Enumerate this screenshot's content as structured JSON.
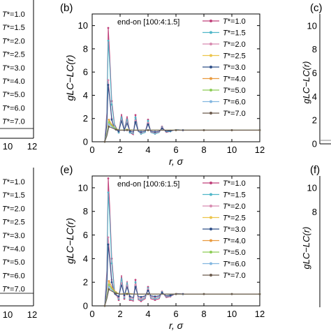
{
  "colors": {
    "T1.0": "#c0407a",
    "T1.5": "#4fb6c8",
    "T2.0": "#d88ab0",
    "T2.5": "#ecc44a",
    "T3.0": "#2f4f88",
    "T4.0": "#e99a3e",
    "T5.0": "#8ccc55",
    "T6.0": "#82b6e0",
    "T7.0": "#6b5a4c"
  },
  "legend_items": [
    {
      "prefix": "T",
      "suffix": "*=1.0"
    },
    {
      "prefix": "T",
      "suffix": "*=1.5"
    },
    {
      "prefix": "T",
      "suffix": "*=2.0"
    },
    {
      "prefix": "T",
      "suffix": "*=2.5"
    },
    {
      "prefix": "T",
      "suffix": "*=3.0"
    },
    {
      "prefix": "T",
      "suffix": "*=4.0"
    },
    {
      "prefix": "T",
      "suffix": "*=5.0"
    },
    {
      "prefix": "T",
      "suffix": "*=6.0"
    },
    {
      "prefix": "T",
      "suffix": "*=7.0"
    }
  ],
  "panel_labels": {
    "b": "(b)",
    "c": "(c)",
    "e": "(e)",
    "f": "(f)"
  },
  "left_xticks": [
    "10",
    "12"
  ],
  "right_yticks": {
    "top": [
      "10",
      "8",
      "6",
      "4",
      "2",
      "0"
    ],
    "bottom": [
      "10",
      "8"
    ]
  },
  "chart_data": [
    {
      "id": "b",
      "type": "line",
      "title": "end-on [100:4:1.5]",
      "xlabel": "r, σ",
      "ylabel": "gLC−LC(r)",
      "xlim": [
        0,
        12
      ],
      "ylim": [
        0,
        11
      ],
      "xticks": [
        "0",
        "2",
        "4",
        "6",
        "8",
        "10",
        "12"
      ],
      "yticks": [
        "0",
        "2",
        "4",
        "6",
        "8",
        "10"
      ],
      "legend_position": "top-right",
      "series": [
        {
          "name": "T*=1.0",
          "x": [
            0.9,
            1.05,
            1.15,
            1.25,
            1.4,
            1.6,
            1.9,
            2.1,
            2.3,
            2.5,
            2.7,
            2.95,
            3.1,
            3.3,
            3.5,
            3.8,
            4.0,
            4.2,
            4.5,
            4.8,
            5.0,
            5.3,
            5.6,
            6.0,
            6.5,
            7,
            8,
            9,
            10,
            11,
            12
          ],
          "y": [
            0,
            2.5,
            9.8,
            7.5,
            3.5,
            1.5,
            0.8,
            2.4,
            1.0,
            2.2,
            0.8,
            0.6,
            2.3,
            0.9,
            0.7,
            0.8,
            1.9,
            0.8,
            0.7,
            0.8,
            1.3,
            0.8,
            0.9,
            1.05,
            1.0,
            1.0,
            1.0,
            1.0,
            1.0,
            1.0,
            1.0
          ]
        },
        {
          "name": "T*=1.5",
          "x": [
            0.9,
            1.05,
            1.15,
            1.25,
            1.4,
            1.6,
            1.9,
            2.1,
            2.3,
            2.5,
            2.7,
            2.95,
            3.1,
            3.3,
            3.5,
            3.8,
            4.0,
            4.2,
            4.5,
            4.8,
            5.0,
            5.3,
            5.6,
            6.0,
            6.5,
            7,
            8,
            9,
            10,
            11,
            12
          ],
          "y": [
            0,
            2.2,
            8.7,
            6.8,
            3.2,
            1.4,
            0.8,
            2.2,
            1.0,
            2.0,
            0.8,
            0.7,
            2.1,
            0.9,
            0.7,
            0.8,
            1.8,
            0.8,
            0.7,
            0.8,
            1.25,
            0.85,
            0.9,
            1.05,
            1.0,
            1.0,
            1.0,
            1.0,
            1.0,
            1.0,
            1.0
          ]
        },
        {
          "name": "T*=2.0",
          "x": [
            0.9,
            1.05,
            1.15,
            1.25,
            1.4,
            1.6,
            1.9,
            2.1,
            2.3,
            2.5,
            2.7,
            2.95,
            3.1,
            3.3,
            3.5,
            3.8,
            4.0,
            4.2,
            4.5,
            4.8,
            5.0,
            5.3,
            5.6,
            6.0,
            6.5,
            7,
            8,
            9,
            10,
            11,
            12
          ],
          "y": [
            0,
            1.8,
            5.3,
            4.0,
            2.0,
            1.1,
            0.9,
            1.9,
            1.0,
            1.7,
            0.9,
            0.8,
            1.8,
            0.9,
            0.8,
            0.9,
            1.6,
            0.85,
            0.8,
            0.85,
            1.2,
            0.9,
            0.95,
            1.02,
            1.0,
            1.0,
            1.0,
            1.0,
            1.0,
            1.0,
            1.0
          ]
        },
        {
          "name": "T*=2.5",
          "x": [
            0.9,
            1.05,
            1.2,
            1.4,
            1.7,
            2.0,
            2.5,
            3.0,
            4.0,
            5,
            6,
            7,
            8,
            9,
            10,
            11,
            12
          ],
          "y": [
            0,
            0.6,
            1.6,
            1.4,
            1.1,
            1.0,
            1.05,
            1.0,
            1.0,
            1.0,
            1.0,
            1.0,
            1.0,
            1.0,
            1.0,
            1.0,
            1.0
          ]
        },
        {
          "name": "T*=3.0",
          "x": [
            0.9,
            1.05,
            1.15,
            1.25,
            1.4,
            1.6,
            1.9,
            2.1,
            2.3,
            2.5,
            2.7,
            2.95,
            3.1,
            3.3,
            3.5,
            3.8,
            4.0,
            4.2,
            4.5,
            4.8,
            5.0,
            5.3,
            5.6,
            6.0,
            6.5,
            7,
            8,
            9,
            10,
            11,
            12
          ],
          "y": [
            0,
            1.5,
            4.9,
            3.8,
            1.9,
            1.1,
            0.9,
            1.8,
            1.0,
            1.6,
            0.9,
            0.85,
            1.7,
            0.9,
            0.85,
            0.9,
            1.5,
            0.9,
            0.85,
            0.9,
            1.15,
            0.9,
            0.95,
            1.02,
            1.0,
            1.0,
            1.0,
            1.0,
            1.0,
            1.0,
            1.0
          ]
        },
        {
          "name": "T*=4.0",
          "x": [
            0.9,
            1.05,
            1.2,
            1.4,
            1.7,
            2.0,
            2.5,
            3.0,
            4.0,
            5,
            6,
            7,
            8,
            9,
            10,
            11,
            12
          ],
          "y": [
            0,
            0.8,
            1.9,
            1.5,
            1.1,
            1.0,
            1.02,
            1.0,
            1.0,
            1.0,
            1.0,
            1.0,
            1.0,
            1.0,
            1.0,
            1.0,
            1.0
          ]
        },
        {
          "name": "T*=5.0",
          "x": [
            0.9,
            1.05,
            1.2,
            1.4,
            1.7,
            2.0,
            2.5,
            3.0,
            4.0,
            5,
            6,
            7,
            8,
            9,
            10,
            11,
            12
          ],
          "y": [
            0,
            0.7,
            1.7,
            1.4,
            1.1,
            1.0,
            1.02,
            1.0,
            1.0,
            1.0,
            1.0,
            1.0,
            1.0,
            1.0,
            1.0,
            1.0,
            1.0
          ]
        },
        {
          "name": "T*=6.0",
          "x": [
            0.9,
            1.05,
            1.2,
            1.4,
            1.7,
            2.0,
            2.5,
            3.0,
            4.0,
            5,
            6,
            7,
            8,
            9,
            10,
            11,
            12
          ],
          "y": [
            0,
            0.6,
            1.5,
            1.3,
            1.05,
            1.0,
            1.0,
            1.0,
            1.0,
            1.0,
            1.0,
            1.0,
            1.0,
            1.0,
            1.0,
            1.0,
            1.0
          ]
        },
        {
          "name": "T*=7.0",
          "x": [
            0.9,
            1.05,
            1.2,
            1.4,
            1.7,
            2.0,
            2.5,
            3.0,
            4.0,
            5,
            6,
            7,
            8,
            9,
            10,
            11,
            12
          ],
          "y": [
            0,
            0.5,
            1.3,
            1.2,
            1.05,
            1.0,
            1.0,
            1.0,
            1.0,
            1.0,
            1.0,
            1.0,
            1.0,
            1.0,
            1.0,
            1.0,
            1.0
          ]
        }
      ]
    },
    {
      "id": "e",
      "type": "line",
      "title": "end-on [100:6:1.5]",
      "xlabel": "r, σ",
      "ylabel": "gLC−LC(r)",
      "xlim": [
        0,
        12
      ],
      "ylim": [
        0,
        11
      ],
      "xticks": [
        "0",
        "2",
        "4",
        "6",
        "8",
        "10",
        "12"
      ],
      "yticks": [
        "0",
        "2",
        "4",
        "6",
        "8",
        "10"
      ],
      "legend_position": "top-right",
      "series": [
        {
          "name": "T*=1.0",
          "x": [
            0.9,
            1.05,
            1.15,
            1.25,
            1.4,
            1.6,
            1.9,
            2.1,
            2.3,
            2.5,
            2.7,
            2.95,
            3.1,
            3.3,
            3.5,
            3.8,
            4.0,
            4.2,
            4.5,
            4.8,
            5.0,
            5.3,
            5.6,
            6.0,
            6.5,
            7,
            8,
            9,
            10,
            11,
            12
          ],
          "y": [
            0,
            3.0,
            10.8,
            8.5,
            4.0,
            1.3,
            0.5,
            2.6,
            0.6,
            2.1,
            0.5,
            0.4,
            2.2,
            0.5,
            0.4,
            0.6,
            1.6,
            0.6,
            0.5,
            0.6,
            1.2,
            0.7,
            0.8,
            1.05,
            1.0,
            1.0,
            1.0,
            1.0,
            1.0,
            1.0,
            1.0
          ]
        },
        {
          "name": "T*=1.5",
          "x": [
            0.9,
            1.05,
            1.15,
            1.25,
            1.4,
            1.6,
            1.9,
            2.1,
            2.3,
            2.5,
            2.7,
            2.95,
            3.1,
            3.3,
            3.5,
            3.8,
            4.0,
            4.2,
            4.5,
            4.8,
            5.0,
            5.3,
            5.6,
            6.0,
            6.5,
            7,
            8,
            9,
            10,
            11,
            12
          ],
          "y": [
            0,
            2.6,
            9.6,
            7.6,
            3.6,
            1.2,
            0.6,
            2.4,
            0.7,
            2.0,
            0.6,
            0.5,
            2.0,
            0.6,
            0.5,
            0.7,
            1.5,
            0.7,
            0.6,
            0.7,
            1.15,
            0.75,
            0.85,
            1.04,
            1.0,
            1.0,
            1.0,
            1.0,
            1.0,
            1.0,
            1.0
          ]
        },
        {
          "name": "T*=2.0",
          "x": [
            0.9,
            1.05,
            1.15,
            1.25,
            1.4,
            1.6,
            1.9,
            2.1,
            2.3,
            2.5,
            2.7,
            2.95,
            3.1,
            3.3,
            3.5,
            3.8,
            4.0,
            4.2,
            4.5,
            4.8,
            5.0,
            5.3,
            5.6,
            6.0,
            6.5,
            7,
            8,
            9,
            10,
            11,
            12
          ],
          "y": [
            0,
            2.0,
            5.8,
            4.5,
            2.2,
            1.0,
            0.7,
            2.0,
            0.8,
            1.8,
            0.7,
            0.6,
            1.8,
            0.7,
            0.6,
            0.8,
            1.4,
            0.8,
            0.7,
            0.8,
            1.1,
            0.8,
            0.9,
            1.02,
            1.0,
            1.0,
            1.0,
            1.0,
            1.0,
            1.0,
            1.0
          ]
        },
        {
          "name": "T*=2.5",
          "x": [
            0.9,
            1.05,
            1.2,
            1.4,
            1.7,
            2.0,
            2.5,
            3.0,
            4.0,
            5,
            6,
            7,
            8,
            9,
            10,
            11,
            12
          ],
          "y": [
            0,
            0.7,
            1.8,
            1.5,
            1.1,
            1.0,
            1.05,
            1.0,
            1.0,
            1.0,
            1.0,
            1.0,
            1.0,
            1.0,
            1.0,
            1.0,
            1.0
          ]
        },
        {
          "name": "T*=3.0",
          "x": [
            0.9,
            1.05,
            1.15,
            1.25,
            1.4,
            1.6,
            1.9,
            2.1,
            2.3,
            2.5,
            2.7,
            2.95,
            3.1,
            3.3,
            3.5,
            3.8,
            4.0,
            4.2,
            4.5,
            4.8,
            5.0,
            5.3,
            5.6,
            6.0,
            6.5,
            7,
            8,
            9,
            10,
            11,
            12
          ],
          "y": [
            0,
            1.7,
            5.2,
            4.0,
            2.0,
            1.0,
            0.8,
            1.8,
            0.9,
            1.6,
            0.8,
            0.7,
            1.6,
            0.8,
            0.75,
            0.85,
            1.3,
            0.85,
            0.8,
            0.85,
            1.1,
            0.85,
            0.9,
            1.02,
            1.0,
            1.0,
            1.0,
            1.0,
            1.0,
            1.0,
            1.0
          ]
        },
        {
          "name": "T*=4.0",
          "x": [
            0.9,
            1.05,
            1.2,
            1.4,
            1.7,
            2.0,
            2.5,
            3.0,
            4.0,
            5,
            6,
            7,
            8,
            9,
            10,
            11,
            12
          ],
          "y": [
            0,
            0.9,
            2.1,
            1.6,
            1.15,
            1.0,
            1.02,
            1.0,
            1.0,
            1.0,
            1.0,
            1.0,
            1.0,
            1.0,
            1.0,
            1.0,
            1.0
          ]
        },
        {
          "name": "T*=5.0",
          "x": [
            0.9,
            1.05,
            1.2,
            1.4,
            1.7,
            2.0,
            2.5,
            3.0,
            4.0,
            5,
            6,
            7,
            8,
            9,
            10,
            11,
            12
          ],
          "y": [
            0,
            0.8,
            1.8,
            1.45,
            1.1,
            1.0,
            1.02,
            1.0,
            1.0,
            1.0,
            1.0,
            1.0,
            1.0,
            1.0,
            1.0,
            1.0,
            1.0
          ]
        },
        {
          "name": "T*=6.0",
          "x": [
            0.9,
            1.05,
            1.2,
            1.4,
            1.7,
            2.0,
            2.5,
            3.0,
            4.0,
            5,
            6,
            7,
            8,
            9,
            10,
            11,
            12
          ],
          "y": [
            0,
            0.7,
            1.6,
            1.35,
            1.05,
            1.0,
            1.0,
            1.0,
            1.0,
            1.0,
            1.0,
            1.0,
            1.0,
            1.0,
            1.0,
            1.0,
            1.0
          ]
        },
        {
          "name": "T*=7.0",
          "x": [
            0.9,
            1.05,
            1.2,
            1.4,
            1.7,
            2.0,
            2.5,
            3.0,
            4.0,
            5,
            6,
            7,
            8,
            9,
            10,
            11,
            12
          ],
          "y": [
            0,
            0.6,
            1.4,
            1.25,
            1.05,
            1.0,
            1.0,
            1.0,
            1.0,
            1.0,
            1.0,
            1.0,
            1.0,
            1.0,
            1.0,
            1.0,
            1.0
          ]
        }
      ]
    }
  ]
}
